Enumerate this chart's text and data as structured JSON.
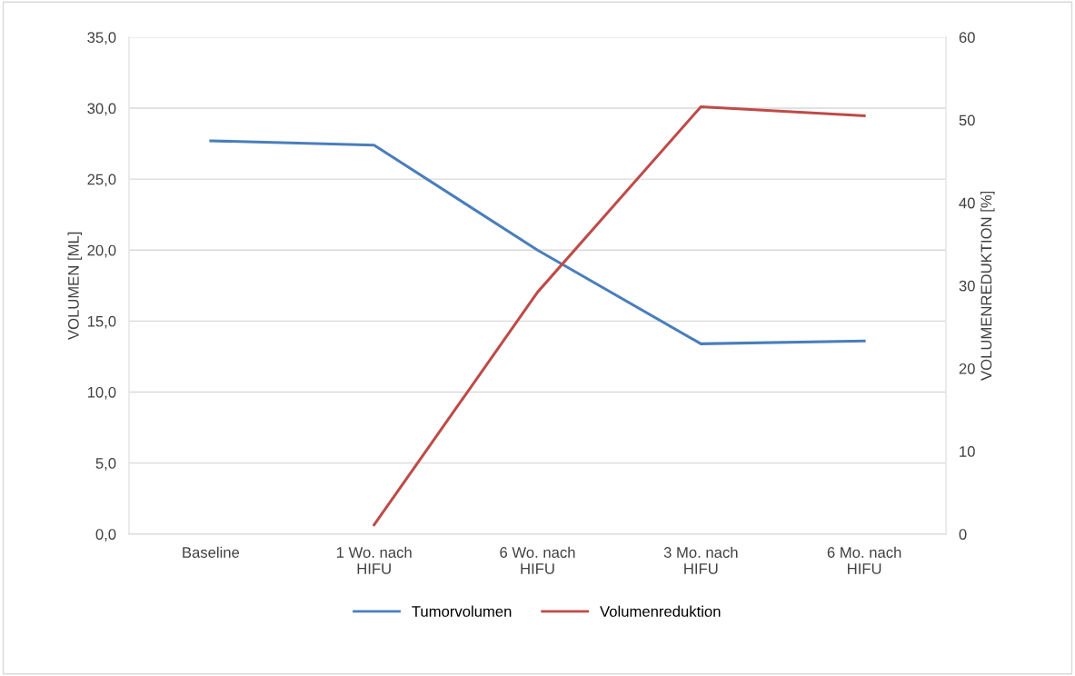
{
  "chart_data": {
    "type": "line",
    "categories": [
      "Baseline",
      "1 Wo. nach\nHIFU",
      "6 Wo. nach\nHIFU",
      "3 Mo. nach\nHIFU",
      "6 Mo. nach\nHIFU"
    ],
    "series": [
      {
        "name": "Tumorvolumen",
        "color": "#4a7ebb",
        "values": [
          27.7,
          27.4,
          20.0,
          13.4,
          13.6
        ]
      },
      {
        "name": "Volumenreduktion",
        "color": "#be4b48",
        "axis": "y2",
        "values": [
          null,
          1.1,
          29.2,
          51.6,
          50.5
        ]
      }
    ],
    "ylabel": "VOLUMEN [ML]",
    "y2label": "VOLUMENREDUKTION [%]",
    "ylim": [
      0,
      35
    ],
    "yticks": [
      {
        "value": 0,
        "label": "0,0"
      },
      {
        "value": 5,
        "label": "5,0"
      },
      {
        "value": 10,
        "label": "10,0"
      },
      {
        "value": 15,
        "label": "15,0"
      },
      {
        "value": 20,
        "label": "20,0"
      },
      {
        "value": 25,
        "label": "25,0"
      },
      {
        "value": 30,
        "label": "30,0"
      },
      {
        "value": 35,
        "label": "35,0"
      }
    ],
    "y2lim": [
      0,
      60
    ],
    "y2ticks": [
      0,
      10,
      20,
      30,
      40,
      50,
      60
    ],
    "grid": "y",
    "legend": "bottom",
    "marker": "none",
    "line_style": "solid"
  }
}
